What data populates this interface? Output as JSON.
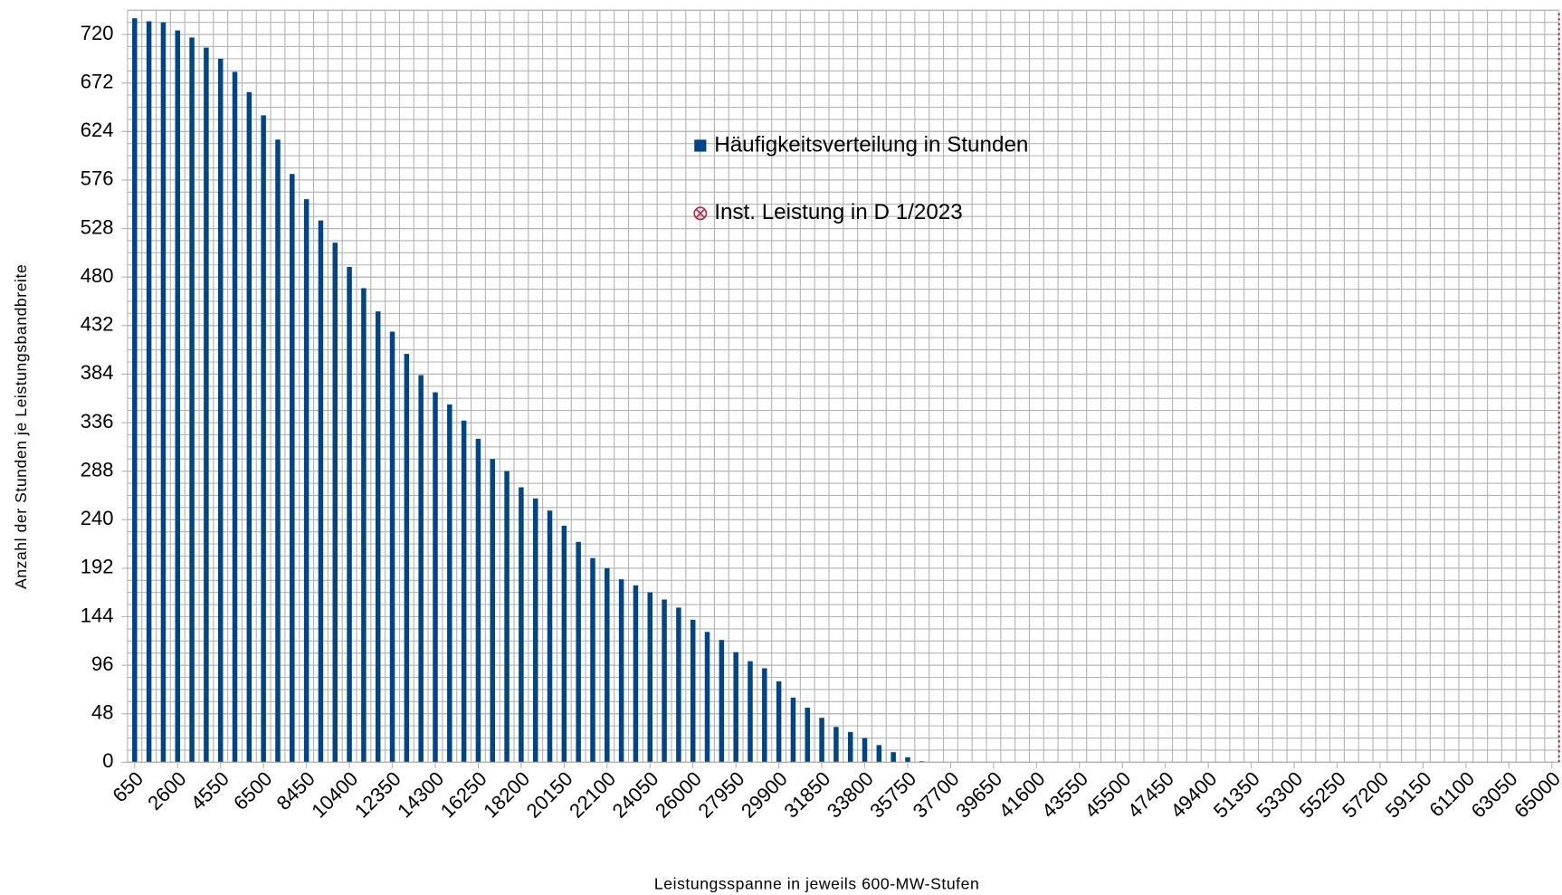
{
  "chart_data": {
    "type": "bar",
    "x_label": "Leistungsspanne in jeweils 600-MW-Stufen",
    "y_label": "Anzahl der Stunden je Leistungsbandbreite",
    "categories": [
      "650",
      null,
      null,
      "2600",
      null,
      null,
      "4550",
      null,
      null,
      "6500",
      null,
      null,
      "8450",
      null,
      null,
      "10400",
      null,
      null,
      "12350",
      null,
      null,
      "14300",
      null,
      null,
      "16250",
      null,
      null,
      "18200",
      null,
      null,
      "20150",
      null,
      null,
      "22100",
      null,
      null,
      "24050",
      null,
      null,
      "26000",
      null,
      null,
      "27950",
      null,
      null,
      "29900",
      null,
      null,
      "31850",
      null,
      null,
      "33800",
      null,
      null,
      "35750",
      null,
      null,
      "37700",
      null,
      null,
      "39650",
      null,
      null,
      "41600",
      null,
      null,
      "43550",
      null,
      null,
      "45500",
      null,
      null,
      "47450",
      null,
      null,
      "49400",
      null,
      null,
      "51350",
      null,
      null,
      "53300",
      null,
      null,
      "55250",
      null,
      null,
      "57200",
      null,
      null,
      "59150",
      null,
      null,
      "61100",
      null,
      null,
      "63050",
      null,
      null,
      "65000"
    ],
    "series": [
      {
        "name": "Häufigkeitsverteilung in Stunden",
        "color": "#004586",
        "values": [
          736,
          733,
          732,
          724,
          717,
          707,
          696,
          683,
          663,
          640,
          616,
          582,
          557,
          536,
          514,
          490,
          469,
          446,
          426,
          404,
          383,
          366,
          354,
          338,
          320,
          300,
          288,
          272,
          261,
          249,
          234,
          218,
          202,
          192,
          181,
          175,
          168,
          161,
          153,
          141,
          129,
          121,
          109,
          100,
          93,
          80,
          64,
          54,
          44,
          35,
          30,
          24,
          17,
          10,
          5,
          1,
          0,
          0,
          0,
          0,
          0,
          0,
          0,
          0,
          0,
          0,
          0,
          0,
          0,
          0,
          0,
          0,
          0,
          0,
          0,
          0,
          0,
          0,
          0,
          0,
          0,
          0,
          0,
          0,
          0,
          0,
          0,
          0,
          0,
          0,
          0,
          0,
          0,
          0,
          0,
          0,
          0,
          0,
          0,
          0
        ]
      },
      {
        "name": "Inst. Leistung in D 1/2023",
        "color": "#b5283c",
        "values": [
          null,
          null,
          null,
          null,
          null,
          null,
          null,
          null,
          null,
          null,
          null,
          null,
          null,
          null,
          null,
          null,
          null,
          null,
          null,
          null,
          null,
          null,
          null,
          null,
          null,
          null,
          null,
          null,
          null,
          null,
          null,
          null,
          null,
          null,
          null,
          null,
          null,
          null,
          null,
          null,
          null,
          null,
          null,
          null,
          null,
          null,
          null,
          null,
          null,
          null,
          null,
          null,
          null,
          null,
          null,
          null,
          null,
          null,
          null,
          null,
          null,
          null,
          null,
          null,
          null,
          null,
          null,
          null,
          null,
          null,
          null,
          null,
          null,
          null,
          null,
          null,
          null,
          null,
          null,
          null,
          null,
          null,
          null,
          null,
          null,
          null,
          null,
          null,
          null,
          null,
          null,
          null,
          null,
          null,
          null,
          null,
          null,
          null,
          null,
          744
        ]
      }
    ],
    "ylim": [
      0,
      744
    ],
    "yticks": [
      0,
      48,
      96,
      144,
      192,
      240,
      288,
      336,
      384,
      432,
      480,
      528,
      576,
      624,
      672,
      720
    ],
    "grid": true
  }
}
